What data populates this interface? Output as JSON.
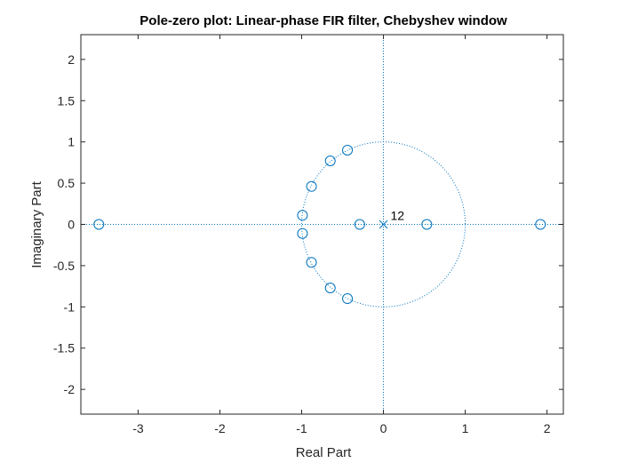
{
  "chart_data": {
    "type": "scatter",
    "title": "Pole-zero plot: Linear-phase FIR filter, Chebyshev window",
    "xlabel": "Real Part",
    "ylabel": "Imaginary Part",
    "xlim": [
      -3.7,
      2.2
    ],
    "ylim": [
      -2.3,
      2.3
    ],
    "xticks": [
      -3,
      -2,
      -1,
      0,
      1,
      2
    ],
    "yticks": [
      -2,
      -1.5,
      -1,
      -0.5,
      0,
      0.5,
      1,
      1.5,
      2
    ],
    "xtick_labels": [
      "-3",
      "-2",
      "-1",
      "0",
      "1",
      "2"
    ],
    "ytick_labels": [
      "-2",
      "-1.5",
      "-1",
      "-0.5",
      "0",
      "0.5",
      "1",
      "1.5",
      "2"
    ],
    "grid": false,
    "unit_circle": true,
    "marker_color": "#0072BD",
    "zeros": [
      {
        "x": -3.48,
        "y": 0
      },
      {
        "x": -0.29,
        "y": 0
      },
      {
        "x": 0.53,
        "y": 0
      },
      {
        "x": 1.92,
        "y": 0
      },
      {
        "x": -0.99,
        "y": 0.11
      },
      {
        "x": -0.99,
        "y": -0.11
      },
      {
        "x": -0.88,
        "y": 0.46
      },
      {
        "x": -0.88,
        "y": -0.46
      },
      {
        "x": -0.65,
        "y": 0.77
      },
      {
        "x": -0.65,
        "y": -0.77
      },
      {
        "x": -0.44,
        "y": 0.9
      },
      {
        "x": -0.44,
        "y": -0.9
      }
    ],
    "poles": [
      {
        "x": 0,
        "y": 0,
        "multiplicity": 12
      }
    ],
    "annotations": [
      {
        "text": "12",
        "x": 0,
        "y": 0
      }
    ]
  }
}
